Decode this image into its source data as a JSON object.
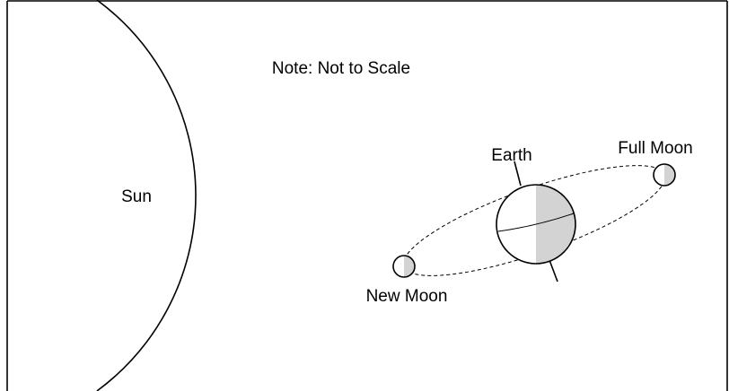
{
  "note": "Note: Not to Scale",
  "labels": {
    "sun": "Sun",
    "earth": "Earth",
    "full_moon": "Full Moon",
    "new_moon": "New Moon"
  }
}
